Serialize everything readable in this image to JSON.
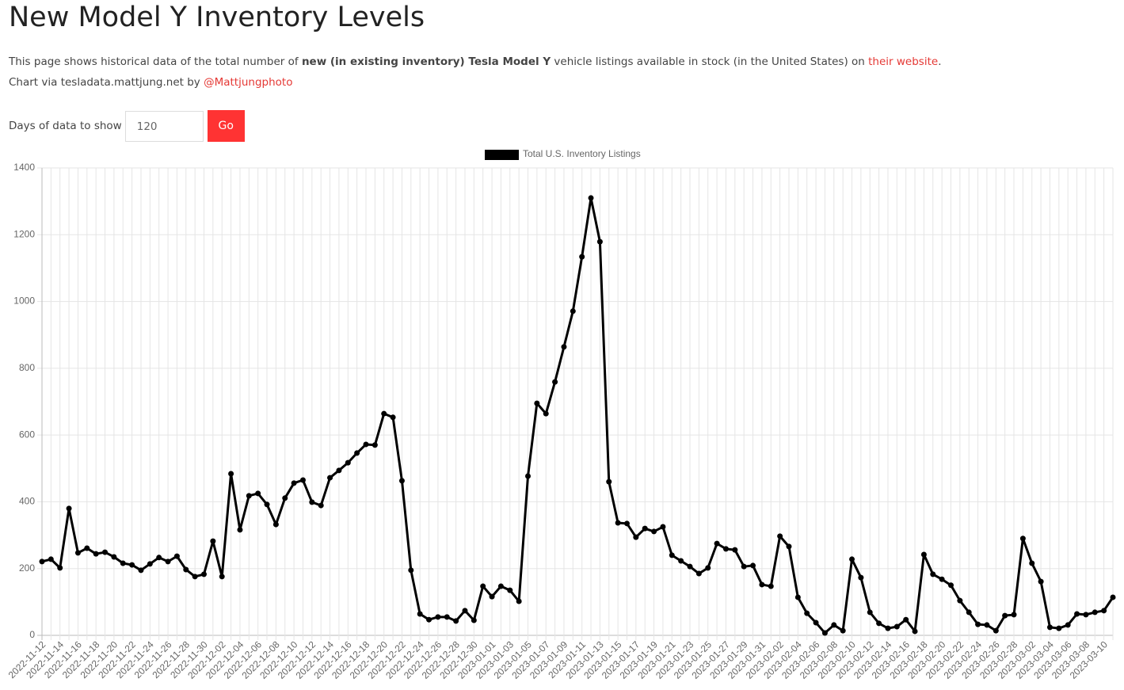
{
  "header": {
    "title": "New Model Y Inventory Levels"
  },
  "intro": {
    "before": "This page shows historical data of the total number of ",
    "bold": "new (in existing inventory) Tesla Model Y",
    "middle": " vehicle listings available in stock (in the United States) on ",
    "link": "their website",
    "after": "."
  },
  "credit": {
    "before": "Chart via tesladata.mattjung.net by ",
    "link": "@Mattjungphoto"
  },
  "form": {
    "label": "Days of data to show",
    "input": "120",
    "button": "Go"
  },
  "chart_data": {
    "type": "line",
    "categories": [
      "2022-11-12",
      null,
      "2022-11-14",
      null,
      "2022-11-16",
      null,
      "2022-11-18",
      null,
      "2022-11-20",
      null,
      "2022-11-22",
      null,
      "2022-11-24",
      null,
      "2022-11-26",
      null,
      "2022-11-28",
      null,
      "2022-11-30",
      null,
      "2022-12-02",
      null,
      "2022-12-04",
      null,
      "2022-12-06",
      null,
      "2022-12-08",
      null,
      "2022-12-10",
      null,
      "2022-12-12",
      null,
      "2022-12-14",
      null,
      "2022-12-16",
      null,
      "2022-12-18",
      null,
      "2022-12-20",
      null,
      "2022-12-22",
      null,
      "2022-12-24",
      null,
      "2022-12-26",
      null,
      "2022-12-28",
      null,
      "2022-12-30",
      null,
      "2023-01-01",
      null,
      "2023-01-03",
      null,
      "2023-01-05",
      null,
      "2023-01-07",
      null,
      "2023-01-09",
      null,
      "2023-01-11",
      null,
      "2023-01-13",
      null,
      "2023-01-15",
      null,
      "2023-01-17",
      null,
      "2023-01-19",
      null,
      "2023-01-21",
      null,
      "2023-01-23",
      null,
      "2023-01-25",
      null,
      "2023-01-27",
      null,
      "2023-01-29",
      null,
      "2023-01-31",
      null,
      "2023-02-02",
      null,
      "2023-02-04",
      null,
      "2023-02-06",
      null,
      "2023-02-08",
      null,
      "2023-02-10",
      null,
      "2023-02-12",
      null,
      "2023-02-14",
      null,
      "2023-02-16",
      null,
      "2023-02-18",
      null,
      "2023-02-20",
      null,
      "2023-02-22",
      null,
      "2023-02-24",
      null,
      "2023-02-26",
      null,
      "2023-02-28",
      null,
      "2023-03-02",
      null,
      "2023-03-04",
      null,
      "2023-03-06",
      null,
      "2023-03-08",
      null,
      "2023-03-10",
      null
    ],
    "series": [
      {
        "name": "Total U.S. Inventory Listings",
        "color": "#000000",
        "values": [
          221,
          228,
          202,
          380,
          247,
          261,
          244,
          249,
          235,
          216,
          211,
          195,
          214,
          233,
          221,
          237,
          197,
          176,
          183,
          282,
          176,
          484,
          316,
          418,
          425,
          392,
          332,
          411,
          456,
          465,
          399,
          389,
          472,
          494,
          517,
          546,
          572,
          570,
          664,
          653,
          463,
          195,
          64,
          47,
          55,
          55,
          43,
          74,
          45,
          147,
          116,
          147,
          135,
          102,
          477,
          695,
          664,
          759,
          864,
          971,
          1134,
          1310,
          1179,
          460,
          337,
          335,
          294,
          320,
          311,
          325,
          240,
          223,
          206,
          185,
          202,
          275,
          259,
          256,
          206,
          209,
          152,
          147,
          297,
          266,
          114,
          66,
          38,
          7,
          31,
          14,
          228,
          173,
          69,
          36,
          21,
          26,
          47,
          12,
          242,
          183,
          168,
          150,
          104,
          69,
          33,
          31,
          14,
          59,
          62,
          290,
          216,
          161,
          24,
          21,
          31,
          64,
          62,
          69,
          74,
          114
        ]
      }
    ],
    "ylim": [
      0,
      1400
    ],
    "yticks": [
      0,
      200,
      400,
      600,
      800,
      1000,
      1200,
      1400
    ],
    "grid": true
  }
}
